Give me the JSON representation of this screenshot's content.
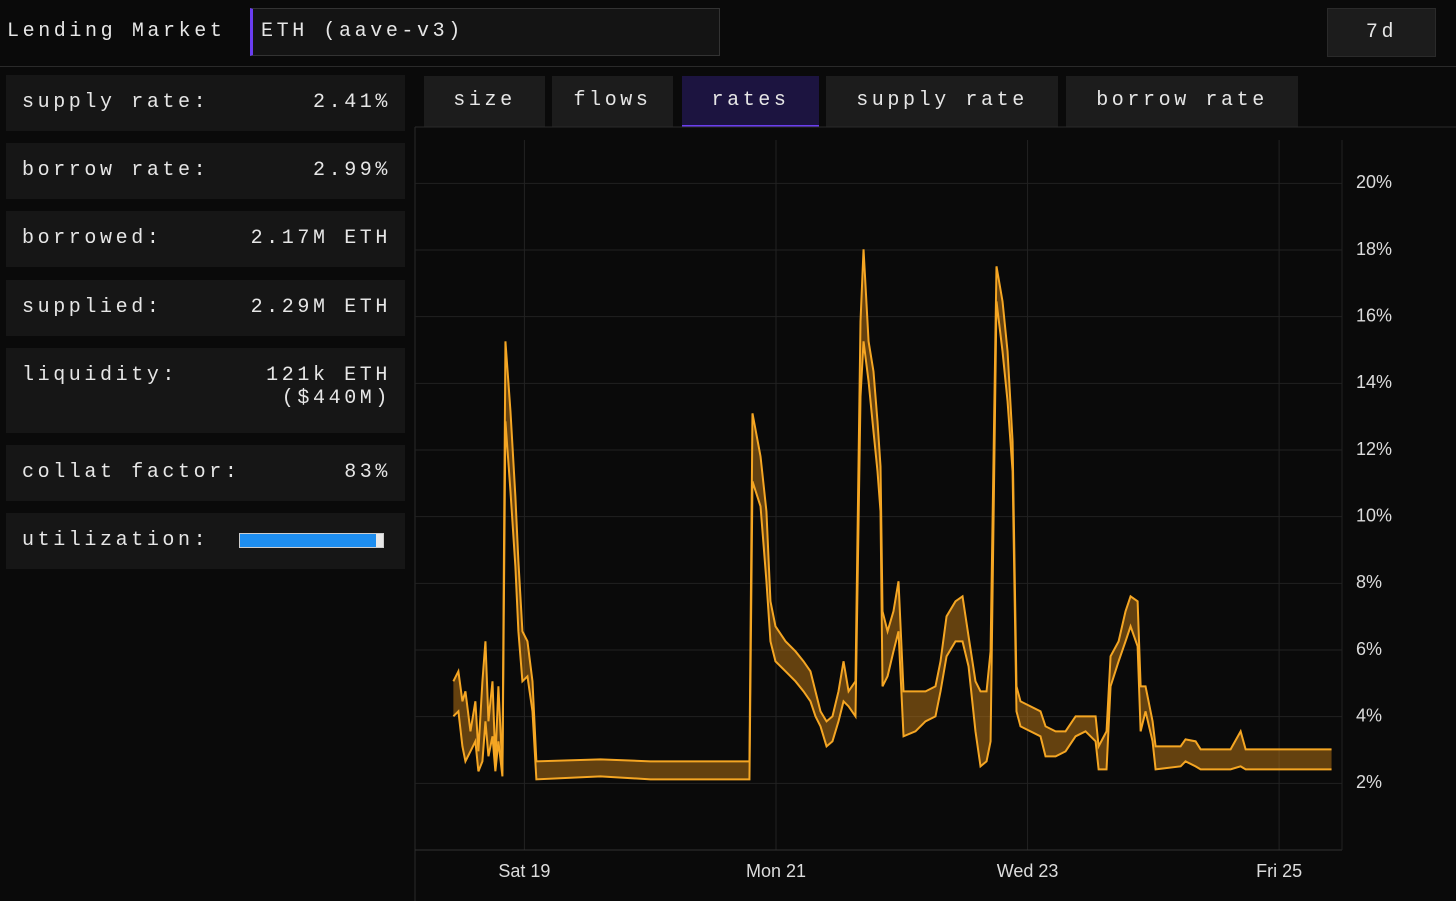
{
  "header": {
    "title": "Lending Market",
    "market": "ETH (aave-v3)",
    "period": "7d"
  },
  "stats": [
    {
      "label": "supply rate:",
      "value": "2.41%"
    },
    {
      "label": "borrow rate:",
      "value": "2.99%"
    },
    {
      "label": "borrowed:",
      "value": "2.17M ETH"
    },
    {
      "label": "supplied:",
      "value": "2.29M ETH"
    },
    {
      "label": "liquidity:",
      "value": "121k ETH",
      "value2": "($440M)"
    },
    {
      "label": "collat factor:",
      "value": "83%"
    }
  ],
  "utilization": {
    "label": "utilization:",
    "value": 95,
    "range": [
      0,
      100
    ]
  },
  "tabs": [
    "size",
    "flows",
    "rates",
    "supply rate",
    "borrow rate"
  ],
  "active_tab": 2,
  "chart_data": {
    "type": "band",
    "color": "#f5a623",
    "fill": "rgba(190,120,20,0.5)",
    "grid": true,
    "xlim": [
      18.13,
      25.5
    ],
    "xticks": [
      {
        "value": 19,
        "label": "Sat 19"
      },
      {
        "value": 21,
        "label": "Mon 21"
      },
      {
        "value": 23,
        "label": "Wed 23"
      },
      {
        "value": 25,
        "label": "Fri 25"
      }
    ],
    "ylim": [
      0,
      21.3
    ],
    "yticks": [
      {
        "value": 2,
        "label": "2%"
      },
      {
        "value": 4,
        "label": "4%"
      },
      {
        "value": 6,
        "label": "6%"
      },
      {
        "value": 8,
        "label": "8%"
      },
      {
        "value": 10,
        "label": "10%"
      },
      {
        "value": 12,
        "label": "12%"
      },
      {
        "value": 14,
        "label": "14%"
      },
      {
        "value": 16,
        "label": "16%"
      },
      {
        "value": 18,
        "label": "18%"
      },
      {
        "value": 20,
        "label": "20%"
      }
    ],
    "x": [
      18.435,
      18.475,
      18.507,
      18.531,
      18.571,
      18.61,
      18.634,
      18.666,
      18.69,
      18.714,
      18.746,
      18.769,
      18.793,
      18.825,
      18.849,
      18.889,
      18.928,
      18.952,
      18.984,
      19.024,
      19.064,
      19.095,
      19.604,
      20.002,
      20.789,
      20.813,
      20.877,
      20.924,
      20.956,
      20.996,
      21.076,
      21.155,
      21.219,
      21.274,
      21.314,
      21.354,
      21.402,
      21.449,
      21.497,
      21.537,
      21.577,
      21.632,
      21.672,
      21.696,
      21.736,
      21.775,
      21.807,
      21.831,
      21.847,
      21.887,
      21.934,
      21.974,
      22.014,
      22.109,
      22.189,
      22.268,
      22.308,
      22.356,
      22.427,
      22.483,
      22.531,
      22.586,
      22.626,
      22.674,
      22.706,
      22.753,
      22.801,
      22.841,
      22.881,
      22.912,
      22.944,
      23.024,
      23.103,
      23.143,
      23.223,
      23.302,
      23.382,
      23.461,
      23.541,
      23.565,
      23.628,
      23.66,
      23.724,
      23.779,
      23.819,
      23.875,
      23.899,
      23.938,
      23.994,
      24.018,
      24.217,
      24.256,
      24.336,
      24.376,
      24.614,
      24.694,
      24.734,
      25.417
    ],
    "series": [
      {
        "values": [
          5.06,
          5.36,
          4.46,
          4.76,
          3.56,
          4.46,
          2.96,
          5.06,
          6.26,
          3.86,
          5.06,
          2.66,
          4.91,
          2.36,
          15.26,
          13.16,
          10.61,
          8.66,
          6.56,
          6.26,
          5.06,
          2.66,
          2.72,
          2.66,
          2.66,
          13.1,
          11.81,
          10.16,
          7.46,
          6.71,
          6.26,
          5.96,
          5.66,
          5.36,
          4.76,
          4.16,
          3.86,
          4.01,
          4.76,
          5.66,
          4.76,
          5.06,
          15.86,
          18.02,
          15.26,
          14.36,
          12.86,
          11.51,
          7.16,
          6.56,
          7.16,
          8.06,
          4.76,
          4.76,
          4.76,
          4.91,
          5.66,
          7.01,
          7.46,
          7.61,
          6.41,
          5.06,
          4.76,
          4.76,
          5.96,
          17.51,
          16.46,
          14.96,
          12.26,
          4.91,
          4.46,
          4.31,
          4.16,
          3.71,
          3.56,
          3.56,
          4.01,
          4.01,
          4.01,
          3.11,
          3.56,
          5.81,
          6.26,
          7.16,
          7.61,
          7.46,
          4.91,
          4.91,
          3.86,
          3.11,
          3.11,
          3.32,
          3.26,
          3.02,
          3.02,
          3.56,
          3.02,
          3.02
        ]
      },
      {
        "values": [
          4.01,
          4.16,
          3.11,
          2.66,
          2.96,
          3.26,
          2.36,
          2.66,
          3.86,
          2.81,
          3.41,
          2.36,
          3.26,
          2.21,
          12.86,
          10.76,
          8.51,
          6.56,
          5.06,
          5.21,
          4.16,
          2.12,
          2.21,
          2.12,
          2.12,
          11.06,
          10.31,
          8.06,
          6.26,
          5.66,
          5.36,
          5.06,
          4.76,
          4.46,
          4.01,
          3.71,
          3.11,
          3.26,
          3.86,
          4.46,
          4.31,
          4.01,
          13.61,
          15.26,
          14.06,
          12.56,
          11.36,
          10.16,
          4.91,
          5.21,
          5.96,
          6.56,
          3.41,
          3.56,
          3.86,
          4.01,
          4.76,
          5.81,
          6.26,
          6.26,
          5.51,
          3.56,
          2.51,
          2.66,
          3.26,
          16.46,
          14.96,
          13.46,
          11.36,
          4.16,
          3.71,
          3.56,
          3.41,
          2.81,
          2.81,
          2.96,
          3.41,
          3.56,
          3.26,
          2.42,
          2.42,
          4.91,
          5.66,
          6.26,
          6.71,
          6.11,
          3.56,
          4.16,
          3.26,
          2.42,
          2.51,
          2.66,
          2.51,
          2.42,
          2.42,
          2.51,
          2.42,
          2.42
        ]
      }
    ]
  }
}
